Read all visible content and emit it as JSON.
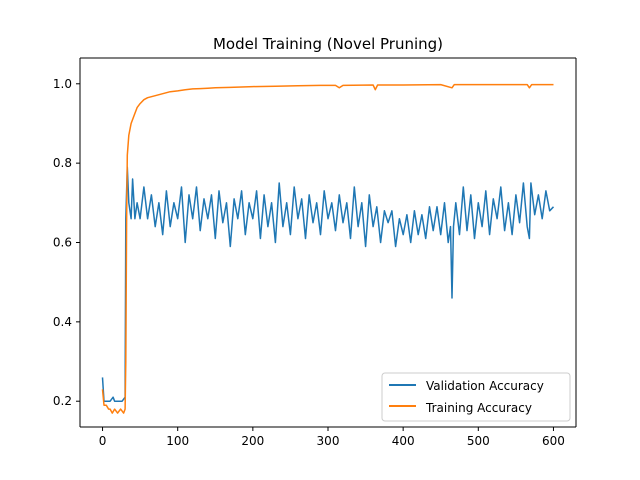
{
  "chart_data": {
    "type": "line",
    "title": "Model Training (Novel Pruning)",
    "xlabel": "",
    "ylabel": "",
    "xlim": [
      -30,
      630
    ],
    "ylim": [
      0.135,
      1.065
    ],
    "x_ticks": [
      0,
      100,
      200,
      300,
      400,
      500,
      600
    ],
    "x_tick_labels": [
      "0",
      "100",
      "200",
      "300",
      "400",
      "500",
      "600"
    ],
    "y_ticks": [
      0.2,
      0.4,
      0.6,
      0.8,
      1.0
    ],
    "y_tick_labels": [
      "0.2",
      "0.4",
      "0.6",
      "0.8",
      "1.0"
    ],
    "grid": false,
    "legend_position": "lower-right",
    "series": [
      {
        "name": "Validation Accuracy",
        "color": "#1f77b4",
        "points": [
          [
            0,
            0.26
          ],
          [
            2,
            0.2
          ],
          [
            10,
            0.2
          ],
          [
            14,
            0.21
          ],
          [
            16,
            0.2
          ],
          [
            20,
            0.2
          ],
          [
            26,
            0.2
          ],
          [
            30,
            0.21
          ],
          [
            31,
            0.66
          ],
          [
            33,
            0.79
          ],
          [
            35,
            0.7
          ],
          [
            38,
            0.66
          ],
          [
            40,
            0.76
          ],
          [
            43,
            0.66
          ],
          [
            46,
            0.7
          ],
          [
            50,
            0.66
          ],
          [
            55,
            0.74
          ],
          [
            60,
            0.66
          ],
          [
            65,
            0.72
          ],
          [
            70,
            0.64
          ],
          [
            75,
            0.7
          ],
          [
            80,
            0.62
          ],
          [
            85,
            0.73
          ],
          [
            90,
            0.64
          ],
          [
            95,
            0.7
          ],
          [
            100,
            0.66
          ],
          [
            105,
            0.74
          ],
          [
            110,
            0.6
          ],
          [
            115,
            0.72
          ],
          [
            120,
            0.66
          ],
          [
            125,
            0.74
          ],
          [
            130,
            0.63
          ],
          [
            135,
            0.71
          ],
          [
            140,
            0.66
          ],
          [
            145,
            0.72
          ],
          [
            150,
            0.61
          ],
          [
            155,
            0.73
          ],
          [
            160,
            0.65
          ],
          [
            165,
            0.7
          ],
          [
            170,
            0.59
          ],
          [
            175,
            0.71
          ],
          [
            180,
            0.66
          ],
          [
            185,
            0.73
          ],
          [
            190,
            0.62
          ],
          [
            195,
            0.7
          ],
          [
            200,
            0.66
          ],
          [
            205,
            0.73
          ],
          [
            210,
            0.61
          ],
          [
            215,
            0.72
          ],
          [
            220,
            0.64
          ],
          [
            225,
            0.7
          ],
          [
            230,
            0.6
          ],
          [
            235,
            0.75
          ],
          [
            240,
            0.64
          ],
          [
            245,
            0.7
          ],
          [
            250,
            0.62
          ],
          [
            255,
            0.74
          ],
          [
            260,
            0.66
          ],
          [
            265,
            0.71
          ],
          [
            270,
            0.61
          ],
          [
            275,
            0.72
          ],
          [
            280,
            0.65
          ],
          [
            285,
            0.7
          ],
          [
            290,
            0.62
          ],
          [
            295,
            0.73
          ],
          [
            300,
            0.66
          ],
          [
            305,
            0.7
          ],
          [
            310,
            0.63
          ],
          [
            315,
            0.72
          ],
          [
            320,
            0.65
          ],
          [
            325,
            0.7
          ],
          [
            330,
            0.61
          ],
          [
            335,
            0.74
          ],
          [
            340,
            0.64
          ],
          [
            345,
            0.7
          ],
          [
            350,
            0.59
          ],
          [
            355,
            0.72
          ],
          [
            360,
            0.64
          ],
          [
            365,
            0.69
          ],
          [
            370,
            0.6
          ],
          [
            375,
            0.68
          ],
          [
            380,
            0.65
          ],
          [
            385,
            0.68
          ],
          [
            390,
            0.59
          ],
          [
            395,
            0.66
          ],
          [
            400,
            0.62
          ],
          [
            405,
            0.67
          ],
          [
            410,
            0.6
          ],
          [
            415,
            0.68
          ],
          [
            420,
            0.62
          ],
          [
            425,
            0.67
          ],
          [
            430,
            0.61
          ],
          [
            435,
            0.69
          ],
          [
            440,
            0.63
          ],
          [
            445,
            0.69
          ],
          [
            450,
            0.62
          ],
          [
            455,
            0.7
          ],
          [
            460,
            0.6
          ],
          [
            463,
            0.64
          ],
          [
            465,
            0.46
          ],
          [
            467,
            0.64
          ],
          [
            470,
            0.7
          ],
          [
            475,
            0.62
          ],
          [
            480,
            0.74
          ],
          [
            485,
            0.63
          ],
          [
            490,
            0.72
          ],
          [
            495,
            0.61
          ],
          [
            500,
            0.7
          ],
          [
            505,
            0.64
          ],
          [
            510,
            0.73
          ],
          [
            515,
            0.62
          ],
          [
            520,
            0.71
          ],
          [
            525,
            0.66
          ],
          [
            530,
            0.74
          ],
          [
            535,
            0.63
          ],
          [
            540,
            0.7
          ],
          [
            545,
            0.62
          ],
          [
            550,
            0.72
          ],
          [
            555,
            0.65
          ],
          [
            560,
            0.75
          ],
          [
            565,
            0.64
          ],
          [
            568,
            0.61
          ],
          [
            570,
            0.75
          ],
          [
            575,
            0.67
          ],
          [
            580,
            0.72
          ],
          [
            585,
            0.66
          ],
          [
            590,
            0.73
          ],
          [
            595,
            0.68
          ],
          [
            600,
            0.69
          ]
        ]
      },
      {
        "name": "Training Accuracy",
        "color": "#ff7f0e",
        "points": [
          [
            0,
            0.23
          ],
          [
            2,
            0.19
          ],
          [
            5,
            0.19
          ],
          [
            8,
            0.18
          ],
          [
            10,
            0.18
          ],
          [
            13,
            0.17
          ],
          [
            16,
            0.18
          ],
          [
            20,
            0.17
          ],
          [
            24,
            0.18
          ],
          [
            28,
            0.17
          ],
          [
            30,
            0.18
          ],
          [
            31,
            0.3
          ],
          [
            32,
            0.65
          ],
          [
            33,
            0.82
          ],
          [
            35,
            0.87
          ],
          [
            38,
            0.9
          ],
          [
            42,
            0.92
          ],
          [
            46,
            0.94
          ],
          [
            50,
            0.95
          ],
          [
            55,
            0.96
          ],
          [
            60,
            0.965
          ],
          [
            70,
            0.97
          ],
          [
            80,
            0.975
          ],
          [
            90,
            0.98
          ],
          [
            100,
            0.982
          ],
          [
            110,
            0.985
          ],
          [
            120,
            0.987
          ],
          [
            130,
            0.988
          ],
          [
            140,
            0.989
          ],
          [
            150,
            0.99
          ],
          [
            170,
            0.991
          ],
          [
            200,
            0.993
          ],
          [
            230,
            0.994
          ],
          [
            260,
            0.995
          ],
          [
            290,
            0.996
          ],
          [
            310,
            0.996
          ],
          [
            315,
            0.99
          ],
          [
            320,
            0.996
          ],
          [
            360,
            0.997
          ],
          [
            363,
            0.985
          ],
          [
            366,
            0.997
          ],
          [
            400,
            0.997
          ],
          [
            450,
            0.998
          ],
          [
            465,
            0.99
          ],
          [
            468,
            0.998
          ],
          [
            500,
            0.998
          ],
          [
            540,
            0.998
          ],
          [
            565,
            0.998
          ],
          [
            568,
            0.99
          ],
          [
            571,
            0.998
          ],
          [
            600,
            0.998
          ]
        ]
      }
    ]
  }
}
